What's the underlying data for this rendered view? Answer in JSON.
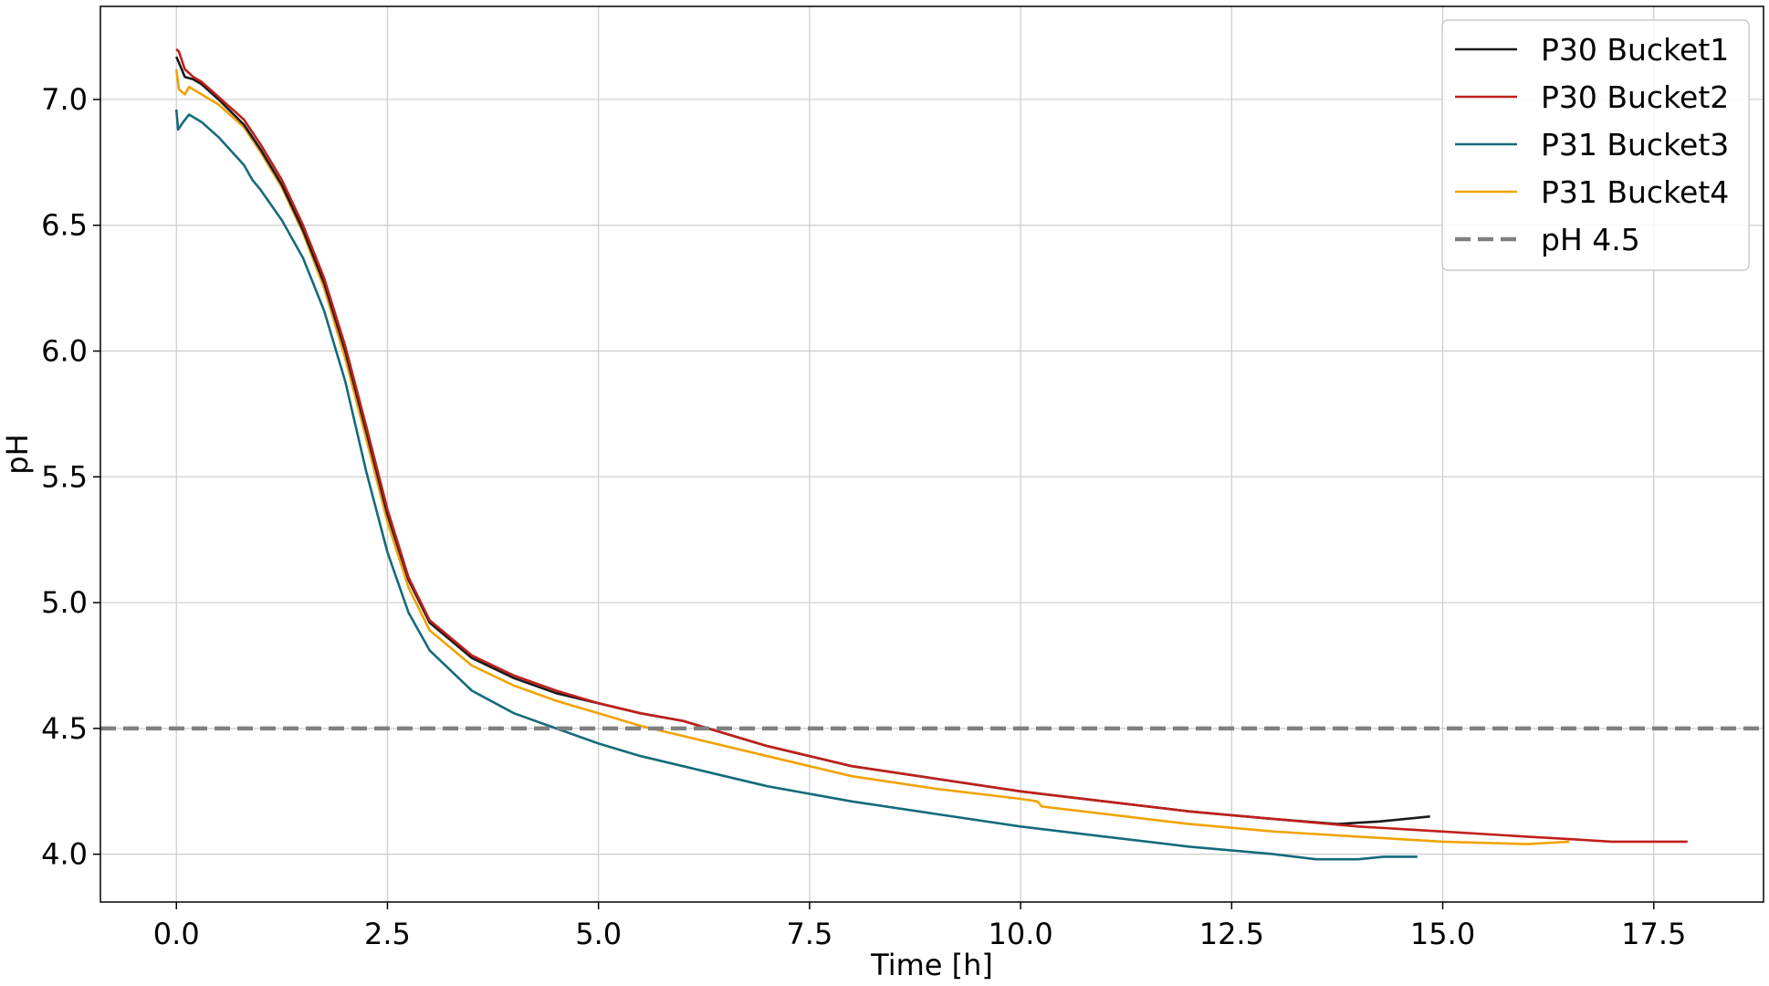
{
  "chart_data": {
    "type": "line",
    "title": "",
    "xlabel": "Time [h]",
    "ylabel": "pH",
    "xlim": [
      -0.9,
      18.8
    ],
    "ylim": [
      3.81,
      7.37
    ],
    "x_ticks": [
      0.0,
      2.5,
      5.0,
      7.5,
      10.0,
      12.5,
      15.0,
      17.5
    ],
    "x_tick_labels": [
      "0.0",
      "2.5",
      "5.0",
      "7.5",
      "10.0",
      "12.5",
      "15.0",
      "17.5"
    ],
    "y_ticks": [
      4.0,
      4.5,
      5.0,
      5.5,
      6.0,
      6.5,
      7.0
    ],
    "y_tick_labels": [
      "4.0",
      "4.5",
      "5.0",
      "5.5",
      "6.0",
      "6.5",
      "7.0"
    ],
    "grid": true,
    "legend_position": "top-right",
    "series": [
      {
        "name": "P30 Bucket1",
        "color": "#1a1a1a",
        "x": [
          0.0,
          0.05,
          0.1,
          0.2,
          0.3,
          0.5,
          0.8,
          1.0,
          1.25,
          1.5,
          1.75,
          2.0,
          2.25,
          2.5,
          2.75,
          3.0,
          3.5,
          4.0,
          4.5,
          5.0,
          5.5,
          6.0,
          7.0,
          7.5,
          8.0,
          9.0,
          10.0,
          11.0,
          12.0,
          13.0,
          13.75,
          14.25,
          14.85
        ],
        "y": [
          7.17,
          7.13,
          7.09,
          7.08,
          7.06,
          7.0,
          6.9,
          6.8,
          6.66,
          6.48,
          6.27,
          6.0,
          5.68,
          5.35,
          5.09,
          4.92,
          4.78,
          4.7,
          4.64,
          4.6,
          4.56,
          4.53,
          4.43,
          4.39,
          4.35,
          4.3,
          4.25,
          4.21,
          4.17,
          4.14,
          4.12,
          4.13,
          4.15
        ]
      },
      {
        "name": "P30 Bucket2",
        "color": "#c0201b",
        "x": [
          0.0,
          0.03,
          0.1,
          0.2,
          0.3,
          0.5,
          0.8,
          1.0,
          1.25,
          1.5,
          1.75,
          2.0,
          2.25,
          2.5,
          2.75,
          3.0,
          3.5,
          4.0,
          4.5,
          5.0,
          5.5,
          6.0,
          7.0,
          7.5,
          8.0,
          9.0,
          10.0,
          11.0,
          12.0,
          13.0,
          14.0,
          15.0,
          16.0,
          16.5,
          17.0,
          17.5,
          17.9
        ],
        "y": [
          7.2,
          7.19,
          7.12,
          7.09,
          7.07,
          7.01,
          6.92,
          6.82,
          6.68,
          6.5,
          6.29,
          6.02,
          5.7,
          5.37,
          5.1,
          4.93,
          4.79,
          4.71,
          4.65,
          4.6,
          4.56,
          4.53,
          4.43,
          4.39,
          4.35,
          4.3,
          4.25,
          4.21,
          4.17,
          4.14,
          4.11,
          4.09,
          4.07,
          4.06,
          4.05,
          4.05,
          4.05
        ]
      },
      {
        "name": "P31 Bucket3",
        "color": "#146b7a",
        "x": [
          0.0,
          0.02,
          0.08,
          0.15,
          0.3,
          0.5,
          0.8,
          0.9,
          1.0,
          1.25,
          1.5,
          1.75,
          2.0,
          2.25,
          2.5,
          2.75,
          3.0,
          3.5,
          4.0,
          4.5,
          5.0,
          5.5,
          6.0,
          7.0,
          7.5,
          8.0,
          9.0,
          10.0,
          11.0,
          12.0,
          13.0,
          13.5,
          14.0,
          14.3,
          14.7
        ],
        "y": [
          6.96,
          6.88,
          6.91,
          6.94,
          6.91,
          6.85,
          6.74,
          6.68,
          6.64,
          6.52,
          6.37,
          6.16,
          5.88,
          5.52,
          5.2,
          4.96,
          4.81,
          4.65,
          4.56,
          4.5,
          4.44,
          4.39,
          4.35,
          4.27,
          4.24,
          4.21,
          4.16,
          4.11,
          4.07,
          4.03,
          4.0,
          3.98,
          3.98,
          3.99,
          3.99
        ]
      },
      {
        "name": "P31 Bucket4",
        "color": "#f0a300",
        "x": [
          0.0,
          0.03,
          0.1,
          0.15,
          0.25,
          0.5,
          0.8,
          1.0,
          1.25,
          1.5,
          1.75,
          2.0,
          2.25,
          2.5,
          2.75,
          3.0,
          3.5,
          4.0,
          4.5,
          5.0,
          5.5,
          6.0,
          7.0,
          7.5,
          8.0,
          9.0,
          10.0,
          10.2,
          10.25,
          11.0,
          12.0,
          13.0,
          14.0,
          15.0,
          16.0,
          16.5
        ],
        "y": [
          7.12,
          7.04,
          7.02,
          7.05,
          7.03,
          6.98,
          6.89,
          6.79,
          6.65,
          6.47,
          6.25,
          5.97,
          5.65,
          5.32,
          5.06,
          4.89,
          4.75,
          4.67,
          4.61,
          4.56,
          4.51,
          4.47,
          4.39,
          4.35,
          4.31,
          4.26,
          4.22,
          4.21,
          4.19,
          4.16,
          4.12,
          4.09,
          4.07,
          4.05,
          4.04,
          4.05
        ]
      },
      {
        "name": "pH 4.5",
        "color": "#808080",
        "dashed": true,
        "y_constant": 4.5
      }
    ]
  }
}
